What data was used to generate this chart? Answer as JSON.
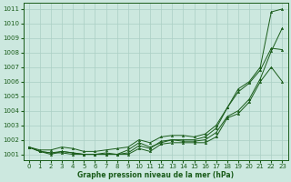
{
  "xlabel": "Graphe pression niveau de la mer (hPa)",
  "background_color": "#cce8df",
  "grid_color": "#aacfc4",
  "line_color": "#1a5c1a",
  "ylim": [
    1000.6,
    1011.4
  ],
  "xlim": [
    -0.5,
    23.5
  ],
  "yticks": [
    1001,
    1002,
    1003,
    1004,
    1005,
    1006,
    1007,
    1008,
    1009,
    1010,
    1011
  ],
  "xticks": [
    0,
    1,
    2,
    3,
    4,
    5,
    6,
    7,
    8,
    9,
    10,
    11,
    12,
    13,
    14,
    15,
    16,
    17,
    18,
    19,
    20,
    21,
    22,
    23
  ],
  "series": [
    [
      1001.5,
      1001.2,
      1001.0,
      1001.2,
      1001.1,
      1001.0,
      1001.0,
      1001.1,
      1001.0,
      1001.3,
      1001.8,
      1001.5,
      1001.8,
      1002.0,
      1002.0,
      1002.0,
      1002.2,
      1002.8,
      1004.2,
      1005.5,
      1006.0,
      1007.0,
      1010.8,
      1011.0
    ],
    [
      1001.5,
      1001.2,
      1001.1,
      1001.2,
      1001.1,
      1001.0,
      1001.0,
      1001.0,
      1001.0,
      1001.1,
      1001.6,
      1001.4,
      1001.9,
      1002.0,
      1001.9,
      1001.9,
      1002.0,
      1002.5,
      1003.6,
      1004.0,
      1004.8,
      1006.2,
      1008.1,
      1009.7
    ],
    [
      1001.5,
      1001.3,
      1001.3,
      1001.5,
      1001.4,
      1001.2,
      1001.2,
      1001.3,
      1001.4,
      1001.5,
      1002.0,
      1001.8,
      1002.2,
      1002.3,
      1002.3,
      1002.2,
      1002.4,
      1003.0,
      1004.2,
      1005.3,
      1005.9,
      1006.8,
      1008.3,
      1008.2
    ],
    [
      1001.5,
      1001.2,
      1001.1,
      1001.1,
      1001.0,
      1001.0,
      1001.0,
      1001.0,
      1001.0,
      1001.0,
      1001.4,
      1001.2,
      1001.7,
      1001.8,
      1001.8,
      1001.8,
      1001.8,
      1002.2,
      1003.5,
      1003.8,
      1004.6,
      1006.0,
      1007.0,
      1006.0
    ]
  ]
}
